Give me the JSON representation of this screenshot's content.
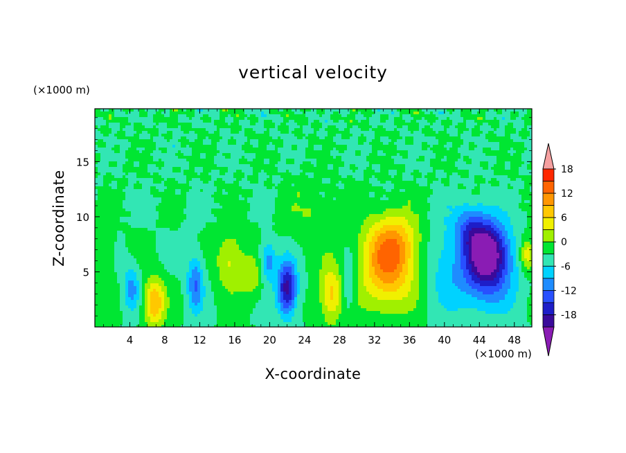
{
  "chart_data": {
    "type": "heatmap",
    "title": "vertical velocity",
    "xlabel": "X-coordinate",
    "ylabel": "Z-coordinate",
    "x_unit": "(×1000 m)",
    "y_unit": "(×1000 m)",
    "xlim": [
      0,
      50
    ],
    "ylim": [
      0,
      19.8
    ],
    "x_ticks": [
      4,
      8,
      12,
      16,
      20,
      24,
      28,
      32,
      36,
      40,
      44,
      48
    ],
    "x_tick_labels": [
      "4",
      "8",
      "12",
      "16",
      "20",
      "24",
      "28",
      "32",
      "36",
      "40",
      "44",
      "48"
    ],
    "y_ticks": [
      5,
      10,
      15
    ],
    "y_tick_labels": [
      "5",
      "10",
      "15"
    ],
    "colorbar": {
      "levels": [
        -21,
        -18,
        -15,
        -12,
        -9,
        -6,
        -3,
        0,
        3,
        6,
        9,
        12,
        15,
        18,
        21
      ],
      "tick_values": [
        18,
        12,
        6,
        0,
        -6,
        -12,
        -18
      ],
      "tick_labels": [
        "18",
        "12",
        "6",
        "0",
        "-6",
        "-12",
        "-18"
      ],
      "colors": [
        "#8a1cb4",
        "#3a0a9a",
        "#1e1ec8",
        "#2850ff",
        "#1e8cff",
        "#00d2ff",
        "#32e6b4",
        "#00e632",
        "#a0f000",
        "#f0f000",
        "#ffc800",
        "#ff9600",
        "#ff6400",
        "#ff2800",
        "#f5a0a0"
      ],
      "extend": "both"
    },
    "features": [
      {
        "x": 6.8,
        "z": 2.2,
        "amp": 12,
        "sx": 1.2,
        "sz": 2.2
      },
      {
        "x": 4.2,
        "z": 3.5,
        "amp": -7,
        "sx": 0.9,
        "sz": 2.0
      },
      {
        "x": 11.5,
        "z": 4.0,
        "amp": -9,
        "sx": 0.9,
        "sz": 2.6
      },
      {
        "x": 15.5,
        "z": 6.0,
        "amp": 7,
        "sx": 1.6,
        "sz": 2.6
      },
      {
        "x": 18.0,
        "z": 4.5,
        "amp": 5,
        "sx": 1.2,
        "sz": 2.0
      },
      {
        "x": 19.8,
        "z": 6.0,
        "amp": -8,
        "sx": 0.9,
        "sz": 1.8
      },
      {
        "x": 22.0,
        "z": 3.5,
        "amp": -17,
        "sx": 1.1,
        "sz": 2.4
      },
      {
        "x": 27.0,
        "z": 3.0,
        "amp": 10,
        "sx": 1.3,
        "sz": 2.6
      },
      {
        "x": 29.0,
        "z": 4.0,
        "amp": -5,
        "sx": 0.8,
        "sz": 2.6
      },
      {
        "x": 33.5,
        "z": 5.5,
        "amp": 14,
        "sx": 3.2,
        "sz": 3.8
      },
      {
        "x": 34.5,
        "z": 8.0,
        "amp": 6,
        "sx": 2.8,
        "sz": 2.5
      },
      {
        "x": 45.0,
        "z": 6.8,
        "amp": -20,
        "sx": 2.4,
        "sz": 2.8
      },
      {
        "x": 43.0,
        "z": 9.0,
        "amp": -8,
        "sx": 1.8,
        "sz": 2.2
      },
      {
        "x": 44.5,
        "z": 4.0,
        "amp": -7,
        "sx": 3.5,
        "sz": 3.0
      },
      {
        "x": 49.5,
        "z": 6.5,
        "amp": 9,
        "sx": 0.8,
        "sz": 1.5
      },
      {
        "x": 1.0,
        "z": 7.0,
        "amp": 3,
        "sx": 1.2,
        "sz": 2.5
      },
      {
        "x": 25.0,
        "z": 10.0,
        "amp": 3,
        "sx": 3.0,
        "sz": 3.0
      },
      {
        "x": 40.0,
        "z": 6.0,
        "amp": -4,
        "sx": 2.5,
        "sz": 4.0
      }
    ]
  }
}
